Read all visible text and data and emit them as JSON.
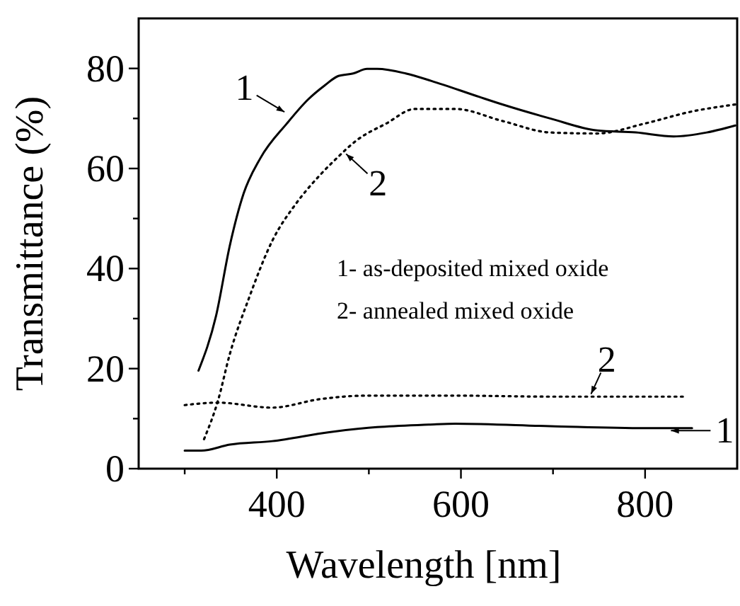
{
  "chart_data": {
    "type": "line",
    "xlabel": "Wavelength [nm]",
    "ylabel": "Transmittance (%)",
    "xlim": [
      250,
      900
    ],
    "xticks": [
      {
        "value": 300,
        "label": null
      },
      400,
      {
        "value": 500,
        "label": null
      },
      600,
      {
        "value": 700,
        "label": null
      },
      800
    ],
    "ylim": [
      0,
      90
    ],
    "yticks": [
      0,
      {
        "value": 10,
        "label": null
      },
      20,
      {
        "value": 30,
        "label": null
      },
      40,
      {
        "value": 50,
        "label": null
      },
      60,
      {
        "value": 70,
        "label": null
      },
      80
    ],
    "grid": false,
    "marker": "none",
    "series": [
      {
        "color": "#000000",
        "line_style": "solid",
        "x": [
          315,
          334,
          349,
          364,
          382,
          411,
          434,
          452,
          467,
          483,
          498,
          509,
          540,
          568,
          620,
          645,
          697,
          748,
          790,
          831,
          867,
          898
        ],
        "values": [
          19.6,
          30.5,
          44.6,
          55,
          62,
          69,
          73.8,
          76.6,
          78.5,
          79,
          79.9,
          79.9,
          79,
          77.5,
          74.3,
          72.8,
          70,
          67.6,
          67.2,
          66.4,
          67.2,
          68.6
        ]
      },
      {
        "color": "#000000",
        "line_style": "dotted",
        "x": [
          321,
          336,
          349,
          370,
          395,
          421,
          447,
          462,
          488,
          519,
          550,
          594,
          645,
          697,
          748,
          800,
          851,
          898
        ],
        "values": [
          5.9,
          13.5,
          22.9,
          34.2,
          45.5,
          53,
          58.7,
          61.5,
          65.8,
          69,
          71.9,
          71.9,
          69.5,
          67.2,
          67,
          69,
          71.4,
          72.8
        ]
      },
      {
        "color": "#000000",
        "line_style": "solid",
        "x": [
          300,
          318,
          349,
          395,
          457,
          509,
          565,
          594,
          697,
          800,
          851
        ],
        "values": [
          3.6,
          3.6,
          4.8,
          5.5,
          7.3,
          8.3,
          8.8,
          9,
          8.5,
          8.1,
          8.1
        ]
      },
      {
        "color": "#000000",
        "line_style": "dotted",
        "x": [
          300,
          336,
          395,
          447,
          498,
          565,
          594,
          697,
          748,
          841
        ],
        "values": [
          12.7,
          13.2,
          12.2,
          13.9,
          14.6,
          14.6,
          14.6,
          14.4,
          14.4,
          14.4
        ]
      }
    ],
    "annotations": [
      {
        "text": "1",
        "x": 411,
        "y": 71
      },
      {
        "text": "2",
        "x": 473,
        "y": 63.3
      },
      "1- as-deposited mixed oxide",
      "2- annealed mixed oxide",
      {
        "text": "2",
        "x": 740,
        "y": 14.4
      },
      {
        "text": "1",
        "x": 825,
        "y": 7.6
      }
    ]
  }
}
